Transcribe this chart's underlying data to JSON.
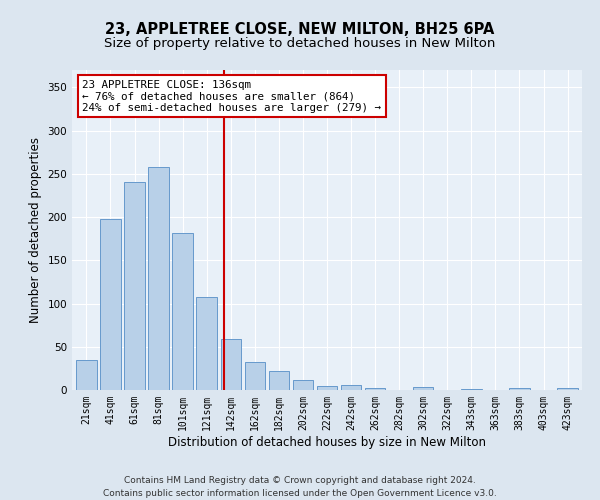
{
  "title": "23, APPLETREE CLOSE, NEW MILTON, BH25 6PA",
  "subtitle": "Size of property relative to detached houses in New Milton",
  "xlabel": "Distribution of detached houses by size in New Milton",
  "ylabel": "Number of detached properties",
  "categories": [
    "21sqm",
    "41sqm",
    "61sqm",
    "81sqm",
    "101sqm",
    "121sqm",
    "142sqm",
    "162sqm",
    "182sqm",
    "202sqm",
    "222sqm",
    "242sqm",
    "262sqm",
    "282sqm",
    "302sqm",
    "322sqm",
    "343sqm",
    "363sqm",
    "383sqm",
    "403sqm",
    "423sqm"
  ],
  "values": [
    35,
    198,
    240,
    258,
    181,
    107,
    59,
    32,
    22,
    11,
    5,
    6,
    2,
    0,
    3,
    0,
    1,
    0,
    2,
    0,
    2
  ],
  "bar_color": "#b8d0e8",
  "bar_edge_color": "#6699cc",
  "vline_color": "#cc0000",
  "annotation_text": "23 APPLETREE CLOSE: 136sqm\n← 76% of detached houses are smaller (864)\n24% of semi-detached houses are larger (279) →",
  "annotation_box_color": "#ffffff",
  "annotation_box_edge_color": "#cc0000",
  "bg_color": "#dce6f0",
  "plot_bg_color": "#e8f0f8",
  "grid_color": "#ffffff",
  "footer": "Contains HM Land Registry data © Crown copyright and database right 2024.\nContains public sector information licensed under the Open Government Licence v3.0.",
  "ylim": [
    0,
    370
  ],
  "yticks": [
    0,
    50,
    100,
    150,
    200,
    250,
    300,
    350
  ],
  "title_fontsize": 10.5,
  "subtitle_fontsize": 9.5,
  "label_fontsize": 8.5,
  "tick_fontsize": 7,
  "footer_fontsize": 6.5,
  "annot_fontsize": 7.8
}
